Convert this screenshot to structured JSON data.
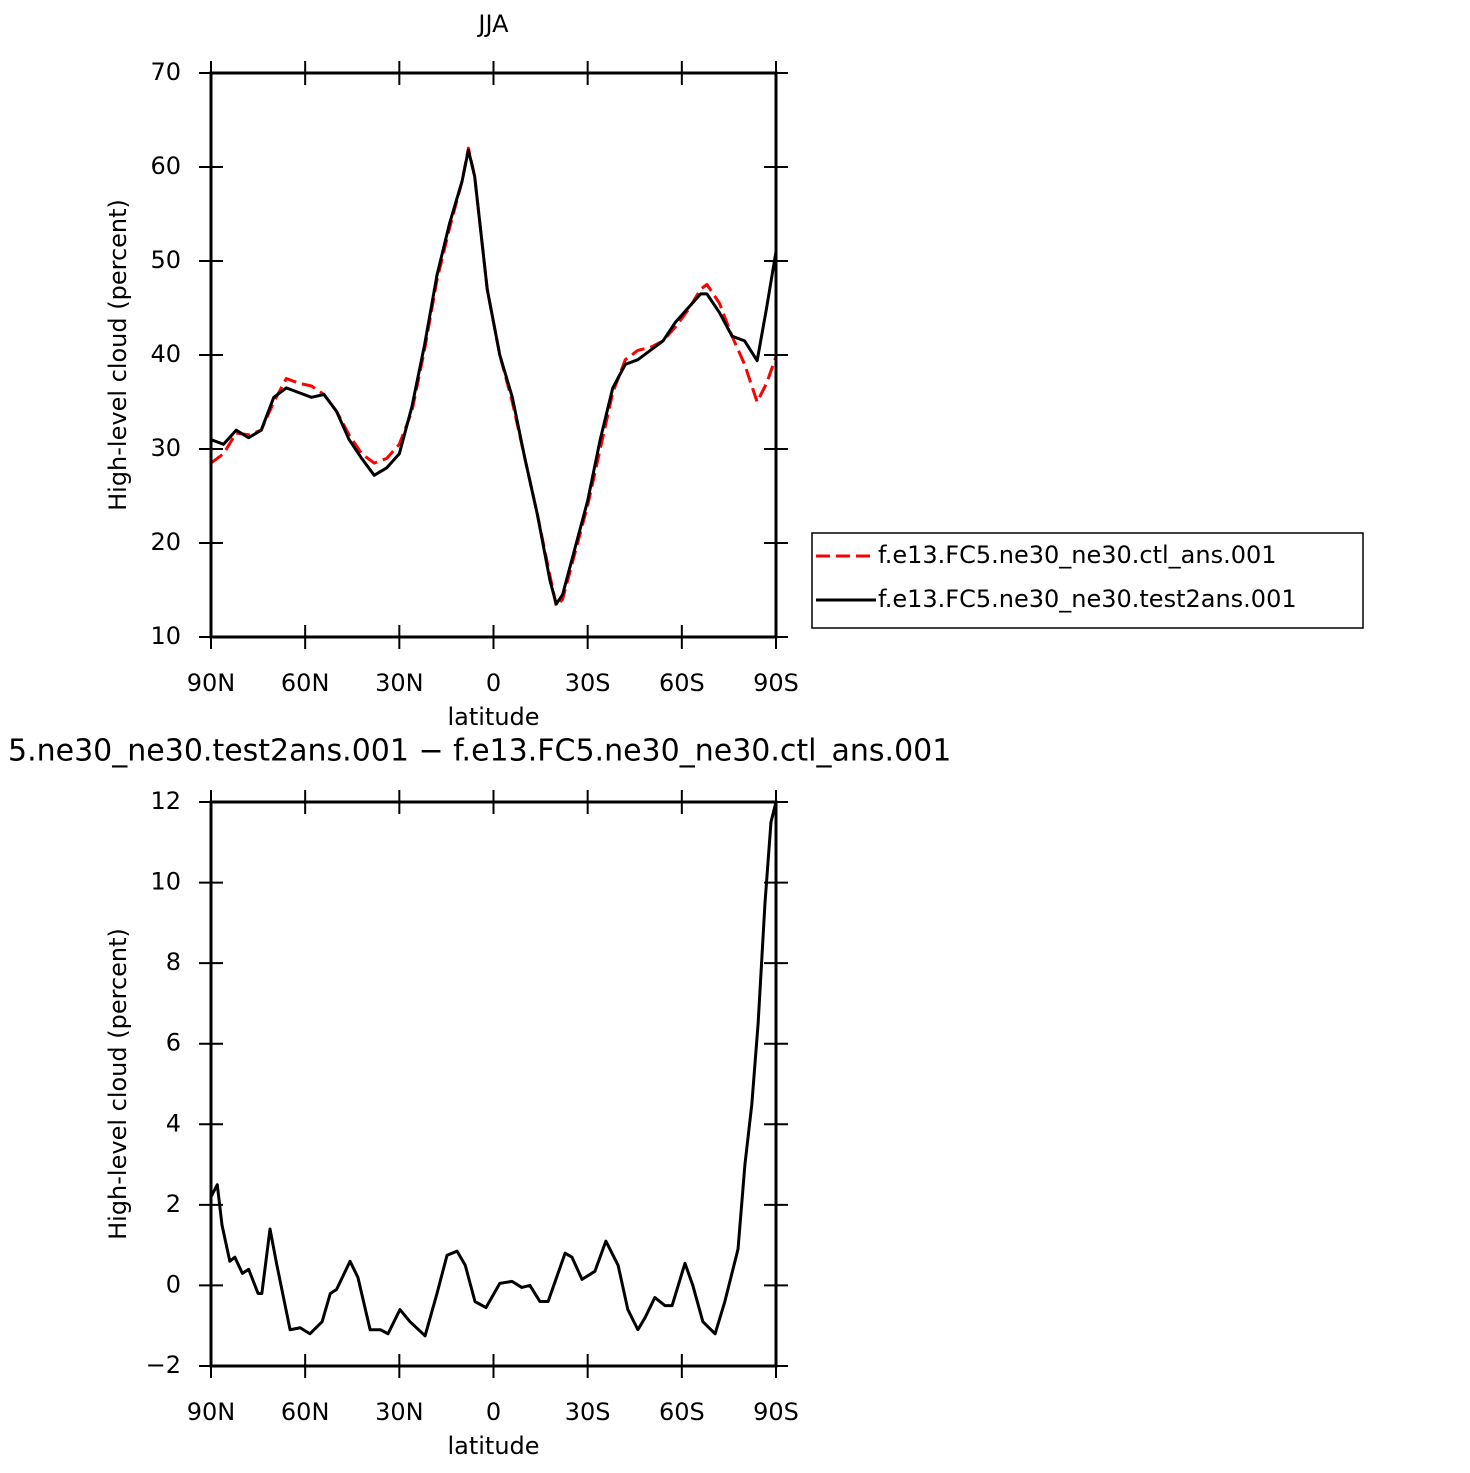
{
  "chart_data": [
    {
      "type": "line",
      "title": "JJA",
      "x_label": "latitude",
      "y_label": "High-level cloud (percent)",
      "x": [
        90,
        86,
        82,
        78,
        74,
        70,
        66,
        62,
        58,
        54,
        50,
        46,
        42,
        38,
        34,
        30,
        26,
        22,
        18,
        14,
        10,
        8,
        6,
        2,
        -2,
        -6,
        -10,
        -14,
        -18,
        -20,
        -22,
        -26,
        -30,
        -34,
        -38,
        -42,
        -46,
        -50,
        -54,
        -58,
        -62,
        -66,
        -68,
        -72,
        -76,
        -80,
        -84,
        -87,
        -90
      ],
      "series": [
        {
          "name": "f.e13.FC5.ne30_ne30.ctl_ans.001",
          "color": "#ff0000",
          "dash": true,
          "values": [
            28.5,
            29.5,
            31.7,
            31.5,
            32,
            35,
            37.5,
            37,
            36.7,
            35.8,
            34,
            31.5,
            29.5,
            28.5,
            29,
            30.5,
            34,
            40.5,
            48,
            53.5,
            58.5,
            62,
            59,
            47,
            40,
            35,
            29,
            23,
            16.5,
            13.3,
            14,
            19,
            24,
            30,
            36,
            39.5,
            40.5,
            40.8,
            41.5,
            43,
            44.8,
            47,
            47.5,
            45.5,
            42,
            39,
            35,
            37,
            39.8
          ]
        },
        {
          "name": "f.e13.FC5.ne30_ne30.test2ans.001",
          "color": "#000000",
          "dash": false,
          "values": [
            31,
            30.5,
            32,
            31.2,
            32,
            35.5,
            36.5,
            36,
            35.5,
            35.8,
            34,
            31,
            29,
            27.2,
            28,
            29.5,
            34.5,
            41,
            48.5,
            54,
            58.5,
            61.8,
            59,
            47,
            40,
            35.5,
            29,
            23,
            16,
            13.5,
            14.5,
            19.5,
            24.5,
            31,
            36.5,
            39,
            39.5,
            40.5,
            41.5,
            43.5,
            45,
            46.5,
            46.5,
            44.5,
            42,
            41.5,
            39.4,
            45,
            51
          ]
        }
      ],
      "xlim": [
        90,
        -90
      ],
      "xticks": [
        {
          "value": 90,
          "label": "90N"
        },
        {
          "value": 60,
          "label": "60N"
        },
        {
          "value": 30,
          "label": "30N"
        },
        0,
        {
          "value": -30,
          "label": "30S"
        },
        {
          "value": -60,
          "label": "60S"
        },
        {
          "value": -90,
          "label": "90S"
        }
      ],
      "ylim": [
        10,
        70
      ],
      "yticks": [
        10,
        20,
        30,
        40,
        50,
        60,
        70
      ],
      "legend": "right"
    },
    {
      "type": "line",
      "title": "5.ne30_ne30.test2ans.001 − f.e13.FC5.ne30_ne30.ctl_ans.001",
      "x_label": "latitude",
      "y_label": "High-level cloud (percent)",
      "x": [
        90,
        88,
        86.5,
        84,
        82.4,
        80,
        78,
        75,
        73.8,
        71.2,
        69,
        64.8,
        61.6,
        58.5,
        54.6,
        52,
        50,
        45.7,
        43.2,
        39.3,
        36,
        33.6,
        29.8,
        26.6,
        21.8,
        18,
        14.8,
        11.6,
        9,
        5.9,
        2.4,
        -2,
        -5.9,
        -9,
        -11.6,
        -14.8,
        -17.4,
        -22.8,
        -25,
        -28.2,
        -32.3,
        -35.8,
        -39.7,
        -42.8,
        -46,
        -48.3,
        -51.4,
        -54.6,
        -56.9,
        -61,
        -63.5,
        -66.7,
        -70.6,
        -73.7,
        -77.9,
        -80.1,
        -82.3,
        -84.3,
        -86.5,
        -88.4,
        -90
      ],
      "series": [
        {
          "color": "#000000",
          "dash": false,
          "values": [
            2.2,
            2.5,
            1.5,
            0.6,
            0.7,
            0.3,
            0.4,
            -0.2,
            -0.2,
            1.4,
            0.5,
            -1.1,
            -1.05,
            -1.2,
            -0.9,
            -0.2,
            -0.1,
            0.6,
            0.2,
            -1.1,
            -1.1,
            -1.2,
            -0.6,
            -0.9,
            -1.25,
            -0.2,
            0.75,
            0.85,
            0.5,
            -0.4,
            -0.55,
            0.05,
            0.1,
            -0.05,
            0,
            -0.4,
            -0.4,
            0.8,
            0.7,
            0.15,
            0.35,
            1.1,
            0.5,
            -0.6,
            -1.1,
            -0.8,
            -0.3,
            -0.5,
            -0.5,
            0.55,
            0,
            -0.9,
            -1.2,
            -0.4,
            0.9,
            3,
            4.5,
            6.5,
            9.5,
            11.5,
            12
          ]
        }
      ],
      "xlim": [
        90,
        -90
      ],
      "xticks": [
        {
          "value": 90,
          "label": "90N"
        },
        {
          "value": 60,
          "label": "60N"
        },
        {
          "value": 30,
          "label": "30N"
        },
        0,
        {
          "value": -30,
          "label": "30S"
        },
        {
          "value": -60,
          "label": "60S"
        },
        {
          "value": -90,
          "label": "90S"
        }
      ],
      "ylim": [
        -2,
        12
      ],
      "yticks": [
        {
          "value": -2,
          "label": "−2"
        },
        0,
        2,
        4,
        6,
        8,
        10,
        12
      ]
    }
  ]
}
